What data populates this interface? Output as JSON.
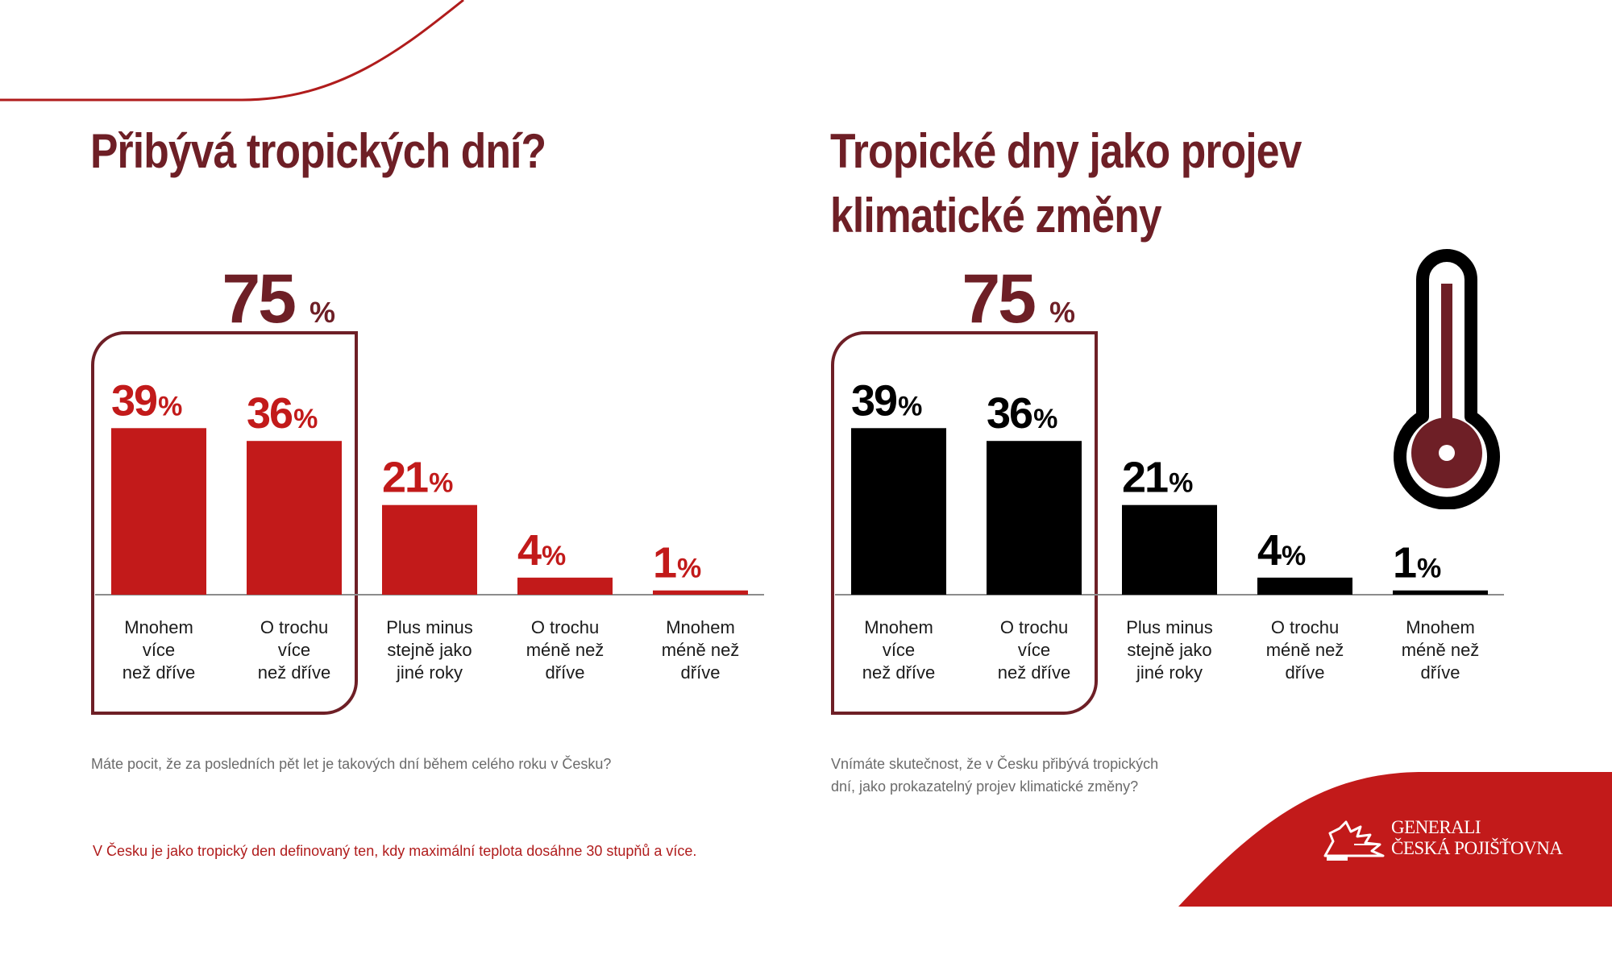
{
  "colors": {
    "dark_red": "#6e1f26",
    "red": "#c21a1a",
    "black": "#000000",
    "gray_text": "#6b6b6b",
    "baseline": "#8c8c8c"
  },
  "brand": {
    "line1": "GENERALI",
    "line2": "ČESKÁ POJIŠŤOVNA",
    "icon": "lion-logo-icon"
  },
  "decor": {
    "thermometer_icon": "thermometer-icon"
  },
  "footnote": "V Česku je jako tropický den definovaný ten, kdy maximální teplota dosáhne 30 stupňů a více.",
  "chart_data": [
    {
      "type": "bar",
      "title": "Přibývá tropických dní?",
      "question": "Máte pocit, že za posledních pět let je takových dní během celého roku v Česku?",
      "categories": [
        [
          "Mnohem",
          "více",
          "než dříve"
        ],
        [
          "O trochu",
          "více",
          "než dříve"
        ],
        [
          "Plus minus",
          "stejně jako",
          "jiné roky"
        ],
        [
          "O trochu",
          "méně než",
          "dříve"
        ],
        [
          "Mnohem",
          "méně než",
          "dříve"
        ]
      ],
      "values": [
        39,
        36,
        21,
        4,
        1
      ],
      "value_labels": [
        "39",
        "36",
        "21",
        "4",
        "1"
      ],
      "unit": "%",
      "bar_color": "#c21a1a",
      "label_color": "#c21a1a",
      "highlight": {
        "total": "75",
        "unit": "%",
        "covers": [
          0,
          1
        ]
      }
    },
    {
      "type": "bar",
      "title": "Tropické dny jako projev klimatické změny",
      "question": "Vnímáte skutečnost, že v Česku přibývá tropických dní, jako prokazatelný projev klimatické změny?",
      "categories": [
        [
          "Mnohem",
          "více",
          "než dříve"
        ],
        [
          "O trochu",
          "více",
          "než dříve"
        ],
        [
          "Plus minus",
          "stejně jako",
          "jiné roky"
        ],
        [
          "O trochu",
          "méně než",
          "dříve"
        ],
        [
          "Mnohem",
          "méně než",
          "dříve"
        ]
      ],
      "values": [
        39,
        36,
        21,
        4,
        1
      ],
      "value_labels": [
        "39",
        "36",
        "21",
        "4",
        "1"
      ],
      "unit": "%",
      "bar_color": "#000000",
      "label_color": "#000000",
      "highlight": {
        "total": "75",
        "unit": "%",
        "covers": [
          0,
          1
        ]
      }
    }
  ]
}
